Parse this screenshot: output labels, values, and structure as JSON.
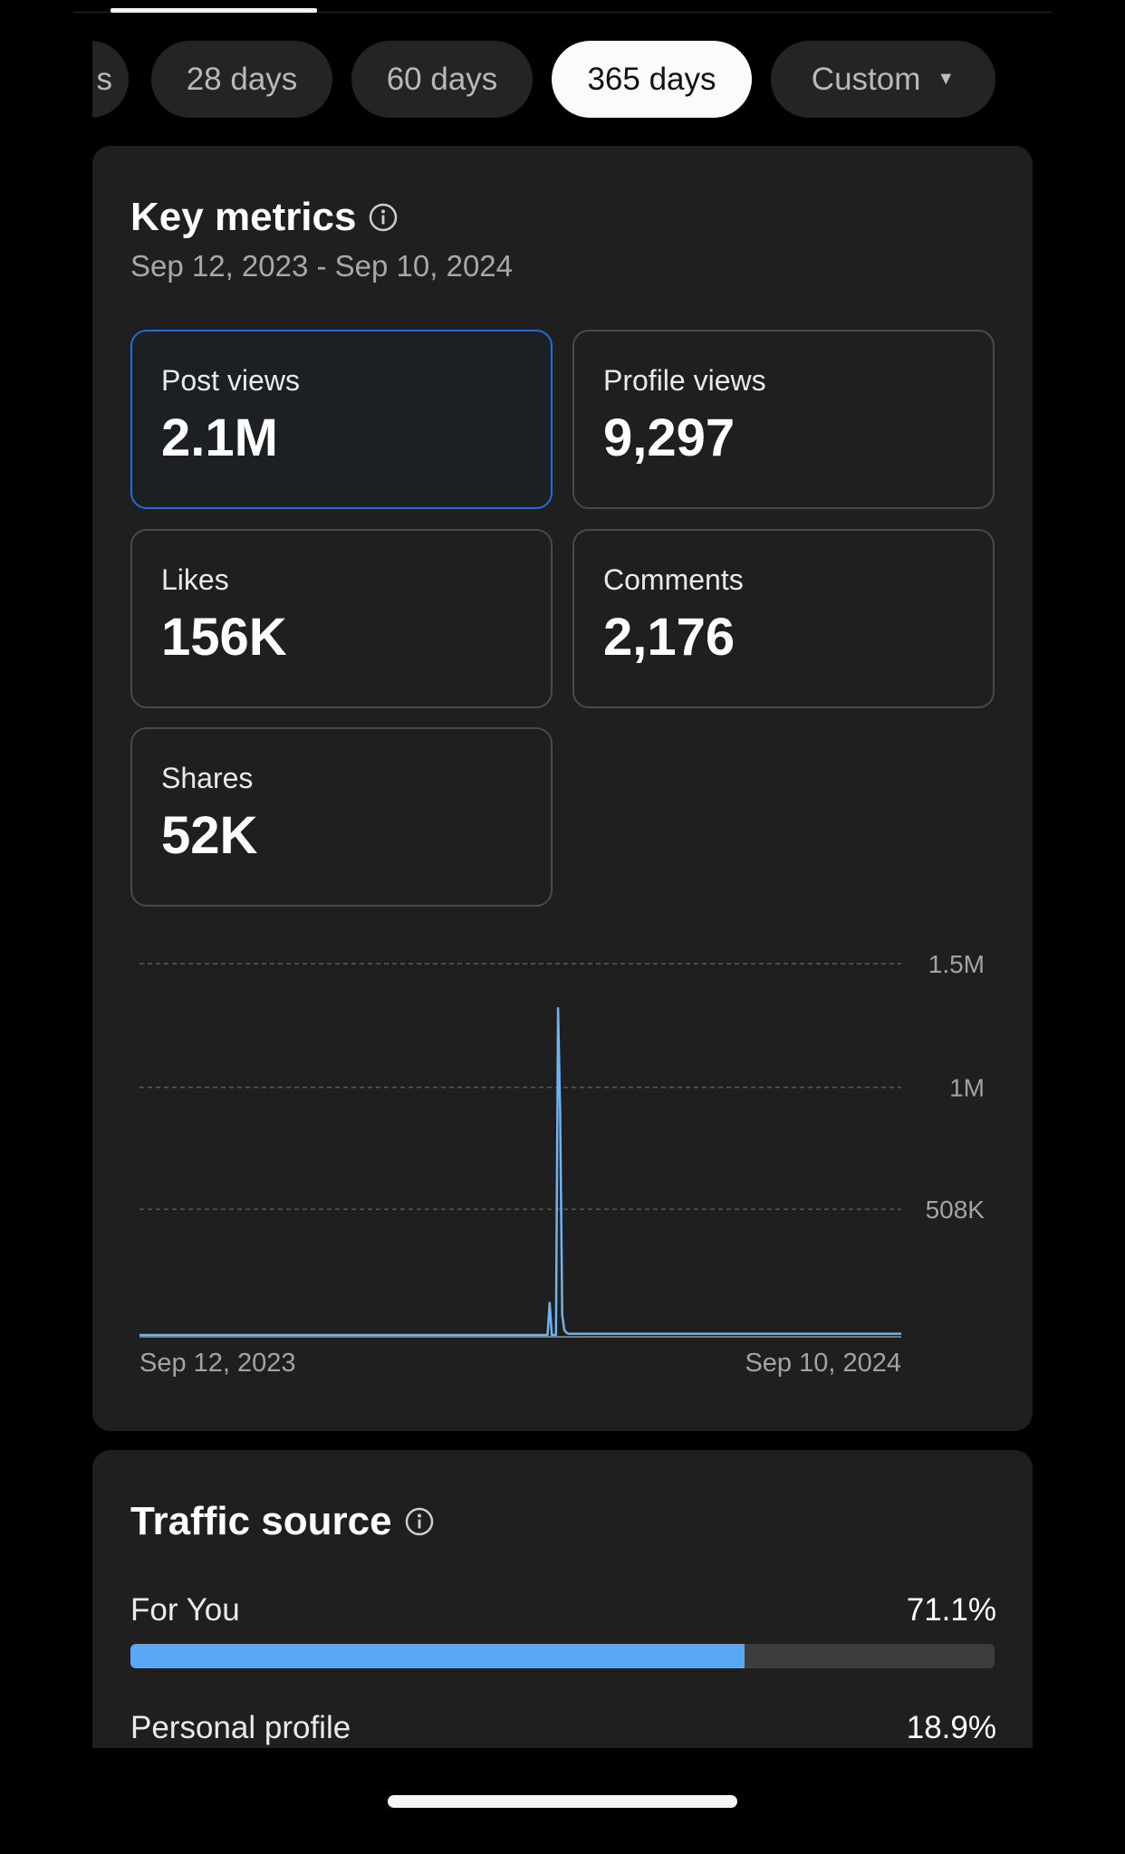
{
  "range_tabs": [
    {
      "label": "s",
      "active": false
    },
    {
      "label": "28 days",
      "active": false
    },
    {
      "label": "60 days",
      "active": false
    },
    {
      "label": "365 days",
      "active": true
    },
    {
      "label": "Custom",
      "active": false,
      "dropdown": true
    }
  ],
  "key_metrics": {
    "title": "Key metrics",
    "date_range": "Sep 12, 2023 - Sep 10, 2024",
    "tiles": [
      {
        "label": "Post views",
        "value": "2.1M",
        "selected": true
      },
      {
        "label": "Profile views",
        "value": "9,297",
        "selected": false
      },
      {
        "label": "Likes",
        "value": "156K",
        "selected": false
      },
      {
        "label": "Comments",
        "value": "2,176",
        "selected": false
      },
      {
        "label": "Shares",
        "value": "52K",
        "selected": false
      }
    ]
  },
  "chart_data": {
    "type": "line",
    "title": "",
    "xlabel": "",
    "ylabel": "",
    "x_tick_labels": [
      "Sep 12, 2023",
      "Sep 10, 2024"
    ],
    "y_tick_labels": [
      "508K",
      "1M",
      "1.5M"
    ],
    "y_ticks": [
      508000,
      1000000,
      1500000
    ],
    "ylim": [
      0,
      1500000
    ],
    "grid": true,
    "series": [
      {
        "color": "#6fb3f2",
        "x": [
          "2023-09-12",
          "2024-03-25",
          "2024-03-26",
          "2024-03-27",
          "2024-03-28",
          "2024-03-29",
          "2024-03-30",
          "2024-03-31",
          "2024-04-01",
          "2024-04-02",
          "2024-04-03",
          "2024-04-04",
          "2024-04-05",
          "2024-09-10"
        ],
        "values": [
          0,
          0,
          130000,
          0,
          0,
          0,
          1320000,
          900000,
          80000,
          20000,
          10000,
          5000,
          5000,
          5000
        ]
      }
    ]
  },
  "traffic_source": {
    "title": "Traffic source",
    "rows": [
      {
        "label": "For You",
        "value": "71.1%",
        "percent": 71.1
      },
      {
        "label": "Personal profile",
        "value": "18.9%",
        "percent": 18.9
      }
    ]
  },
  "colors": {
    "accent": "#5aa8f5",
    "card": "#1f1f1f",
    "background": "#000000",
    "selected_border": "#1f6fd6"
  }
}
